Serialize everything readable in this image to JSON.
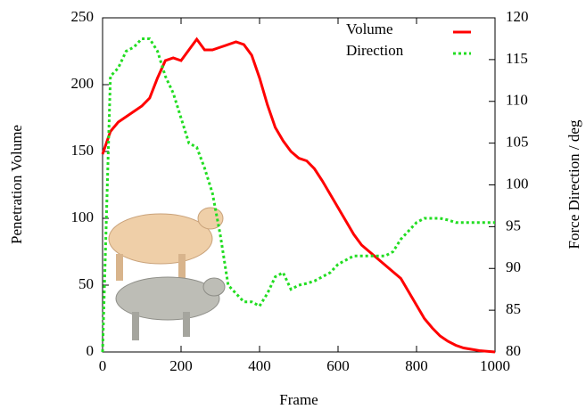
{
  "chart_data": {
    "type": "line",
    "xlabel": "Frame",
    "ylabel": "Penetration Volume",
    "y2label": "Force Direction / deg",
    "x": [
      0,
      20,
      40,
      60,
      80,
      100,
      120,
      140,
      160,
      180,
      200,
      220,
      240,
      260,
      280,
      300,
      320,
      340,
      360,
      380,
      400,
      420,
      440,
      460,
      480,
      500,
      520,
      540,
      560,
      580,
      600,
      620,
      640,
      660,
      680,
      700,
      720,
      740,
      760,
      780,
      800,
      820,
      840,
      860,
      880,
      900,
      920,
      940,
      960,
      980,
      1000
    ],
    "series": [
      {
        "name": "Volume",
        "color": "#ff0000",
        "dash": "none",
        "values": [
          148,
          165,
          172,
          176,
          180,
          184,
          190,
          205,
          218,
          220,
          218,
          226,
          234,
          226,
          226,
          228,
          230,
          232,
          230,
          222,
          205,
          185,
          168,
          158,
          150,
          145,
          143,
          137,
          128,
          118,
          108,
          98,
          88,
          80,
          75,
          70,
          65,
          60,
          55,
          45,
          35,
          25,
          18,
          12,
          8,
          5,
          3,
          2,
          1,
          0.5,
          0
        ]
      },
      {
        "name": "Direction",
        "color": "#22dd22",
        "dash": "3,3",
        "axis": "y2",
        "values": [
          80,
          113,
          114,
          116,
          116.5,
          117.5,
          117.5,
          116,
          113,
          111,
          108,
          105,
          104.5,
          102,
          99,
          94,
          88,
          87,
          86,
          86,
          85.5,
          87,
          89,
          89.5,
          87.5,
          88,
          88.2,
          88.5,
          89,
          89.5,
          90.5,
          91,
          91.5,
          91.5,
          91.5,
          91.5,
          91.5,
          92,
          93.5,
          94.5,
          95.5,
          96,
          96,
          96,
          95.8,
          95.5,
          95.5,
          95.5,
          95.5,
          95.5,
          95.5
        ]
      }
    ],
    "xlim": [
      0,
      1000
    ],
    "xticks": [
      0,
      200,
      400,
      600,
      800,
      1000
    ],
    "ylim": [
      0,
      250
    ],
    "yticks": [
      0,
      50,
      100,
      150,
      200,
      250
    ],
    "y2lim": [
      80,
      120
    ],
    "y2ticks": [
      80,
      85,
      90,
      95,
      100,
      105,
      110,
      115,
      120
    ],
    "legend": "top-right"
  }
}
